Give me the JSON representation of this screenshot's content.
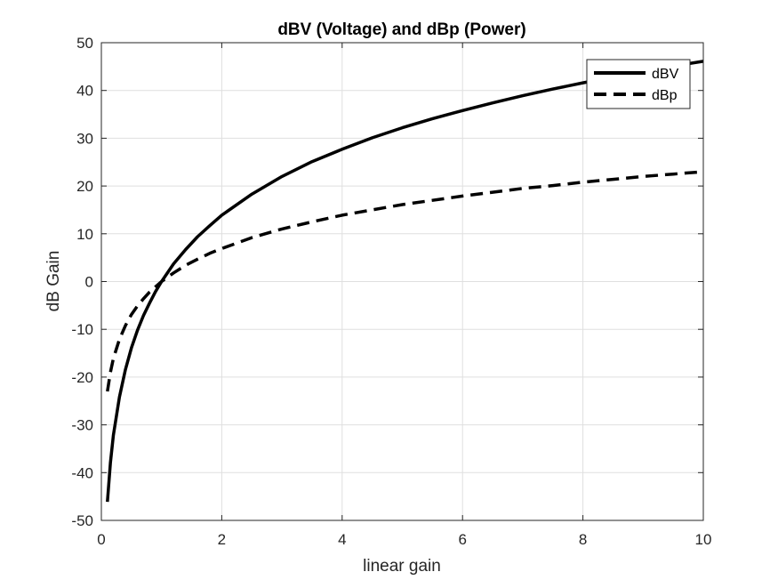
{
  "chart_data": {
    "type": "line",
    "title": "dBV (Voltage) and dBp (Power)",
    "xlabel": "linear gain",
    "ylabel": "dB Gain",
    "xlim": [
      0,
      10
    ],
    "ylim": [
      -50,
      50
    ],
    "x_ticks": [
      0,
      2,
      4,
      6,
      8,
      10
    ],
    "y_ticks": [
      -50,
      -40,
      -30,
      -20,
      -10,
      0,
      10,
      20,
      30,
      40,
      50
    ],
    "x_tick_labels": [
      "0",
      "2",
      "4",
      "6",
      "8",
      "10"
    ],
    "y_tick_labels": [
      "-50",
      "-40",
      "-30",
      "-20",
      "-10",
      "0",
      "10",
      "20",
      "30",
      "40",
      "50"
    ],
    "grid": true,
    "legend_position": "top-right",
    "x": [
      0.1,
      0.15,
      0.2,
      0.3,
      0.4,
      0.5,
      0.6,
      0.7,
      0.8,
      0.9,
      1.0,
      1.2,
      1.4,
      1.6,
      1.8,
      2.0,
      2.5,
      3.0,
      3.5,
      4.0,
      4.5,
      5.0,
      5.5,
      6.0,
      6.5,
      7.0,
      7.5,
      8.0,
      8.5,
      9.0,
      9.5,
      10.0
    ],
    "series": [
      {
        "name": "dBV",
        "line_style": "solid",
        "color": "#000000",
        "values": [
          -46.1,
          -37.9,
          -32.2,
          -24.2,
          -18.4,
          -13.9,
          -10.2,
          -7.1,
          -4.5,
          -2.1,
          0.0,
          3.7,
          6.7,
          9.4,
          11.7,
          13.9,
          18.3,
          22.0,
          25.1,
          27.7,
          30.1,
          32.2,
          34.1,
          35.8,
          37.4,
          38.9,
          40.3,
          41.6,
          42.8,
          44.0,
          45.1,
          46.1
        ]
      },
      {
        "name": "dBp",
        "line_style": "dashed",
        "color": "#000000",
        "values": [
          -23.0,
          -19.0,
          -16.1,
          -12.1,
          -9.2,
          -6.9,
          -5.1,
          -3.6,
          -2.2,
          -1.1,
          0.0,
          1.8,
          3.4,
          4.7,
          5.9,
          6.9,
          9.2,
          11.0,
          12.5,
          13.9,
          15.0,
          16.1,
          17.0,
          17.9,
          18.7,
          19.5,
          20.1,
          20.8,
          21.4,
          22.0,
          22.5,
          23.0
        ]
      }
    ]
  }
}
